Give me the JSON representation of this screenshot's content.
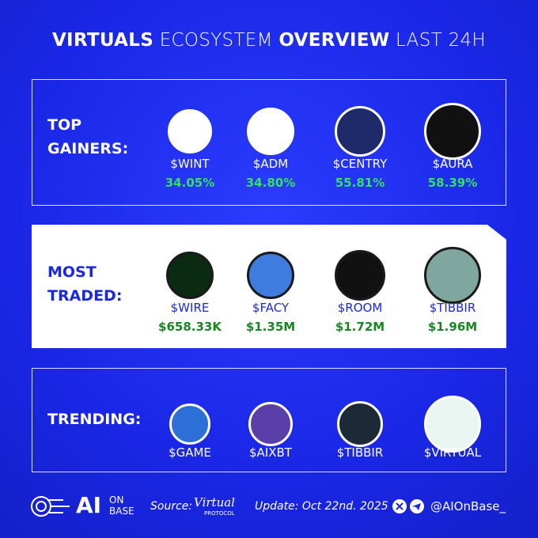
{
  "title": {
    "bold1": "VIRTUALS",
    "light1": "ECOSYSTEM",
    "bold2": "OVERVIEW",
    "light2": "LAST 24H"
  },
  "sections": [
    {
      "label": [
        "TOP",
        "GAINERS:"
      ],
      "tokens": [
        {
          "name": "$WINT",
          "value": "34.05%"
        },
        {
          "name": "$ADM",
          "value": "34.80%"
        },
        {
          "name": "$CENTRY",
          "value": "55.81%"
        },
        {
          "name": "$AURA",
          "value": "58.39%"
        }
      ]
    },
    {
      "label": [
        "MOST",
        "TRADED:"
      ],
      "tokens": [
        {
          "name": "$WIRE",
          "value": "$658.33K"
        },
        {
          "name": "$FACY",
          "value": "$1.35M"
        },
        {
          "name": "$ROOM",
          "value": "$1.72M"
        },
        {
          "name": "$TIBBIR",
          "value": "$1.96M"
        }
      ]
    },
    {
      "label": [
        "TRENDING:"
      ],
      "tokens": [
        {
          "name": "$GAME"
        },
        {
          "name": "$AIXBT"
        },
        {
          "name": "$TIBBIR"
        },
        {
          "name": "$VIRTUAL"
        }
      ]
    }
  ],
  "footer": {
    "brand": "AI",
    "brand_sub": [
      "ON",
      "BASE"
    ],
    "source_label": "Source:",
    "source_logo": "Virtual",
    "source_logo_sub": "PROTOCOL",
    "update": "Update: Oct 22nd. 2025",
    "handle": "@AIOnBase_"
  }
}
